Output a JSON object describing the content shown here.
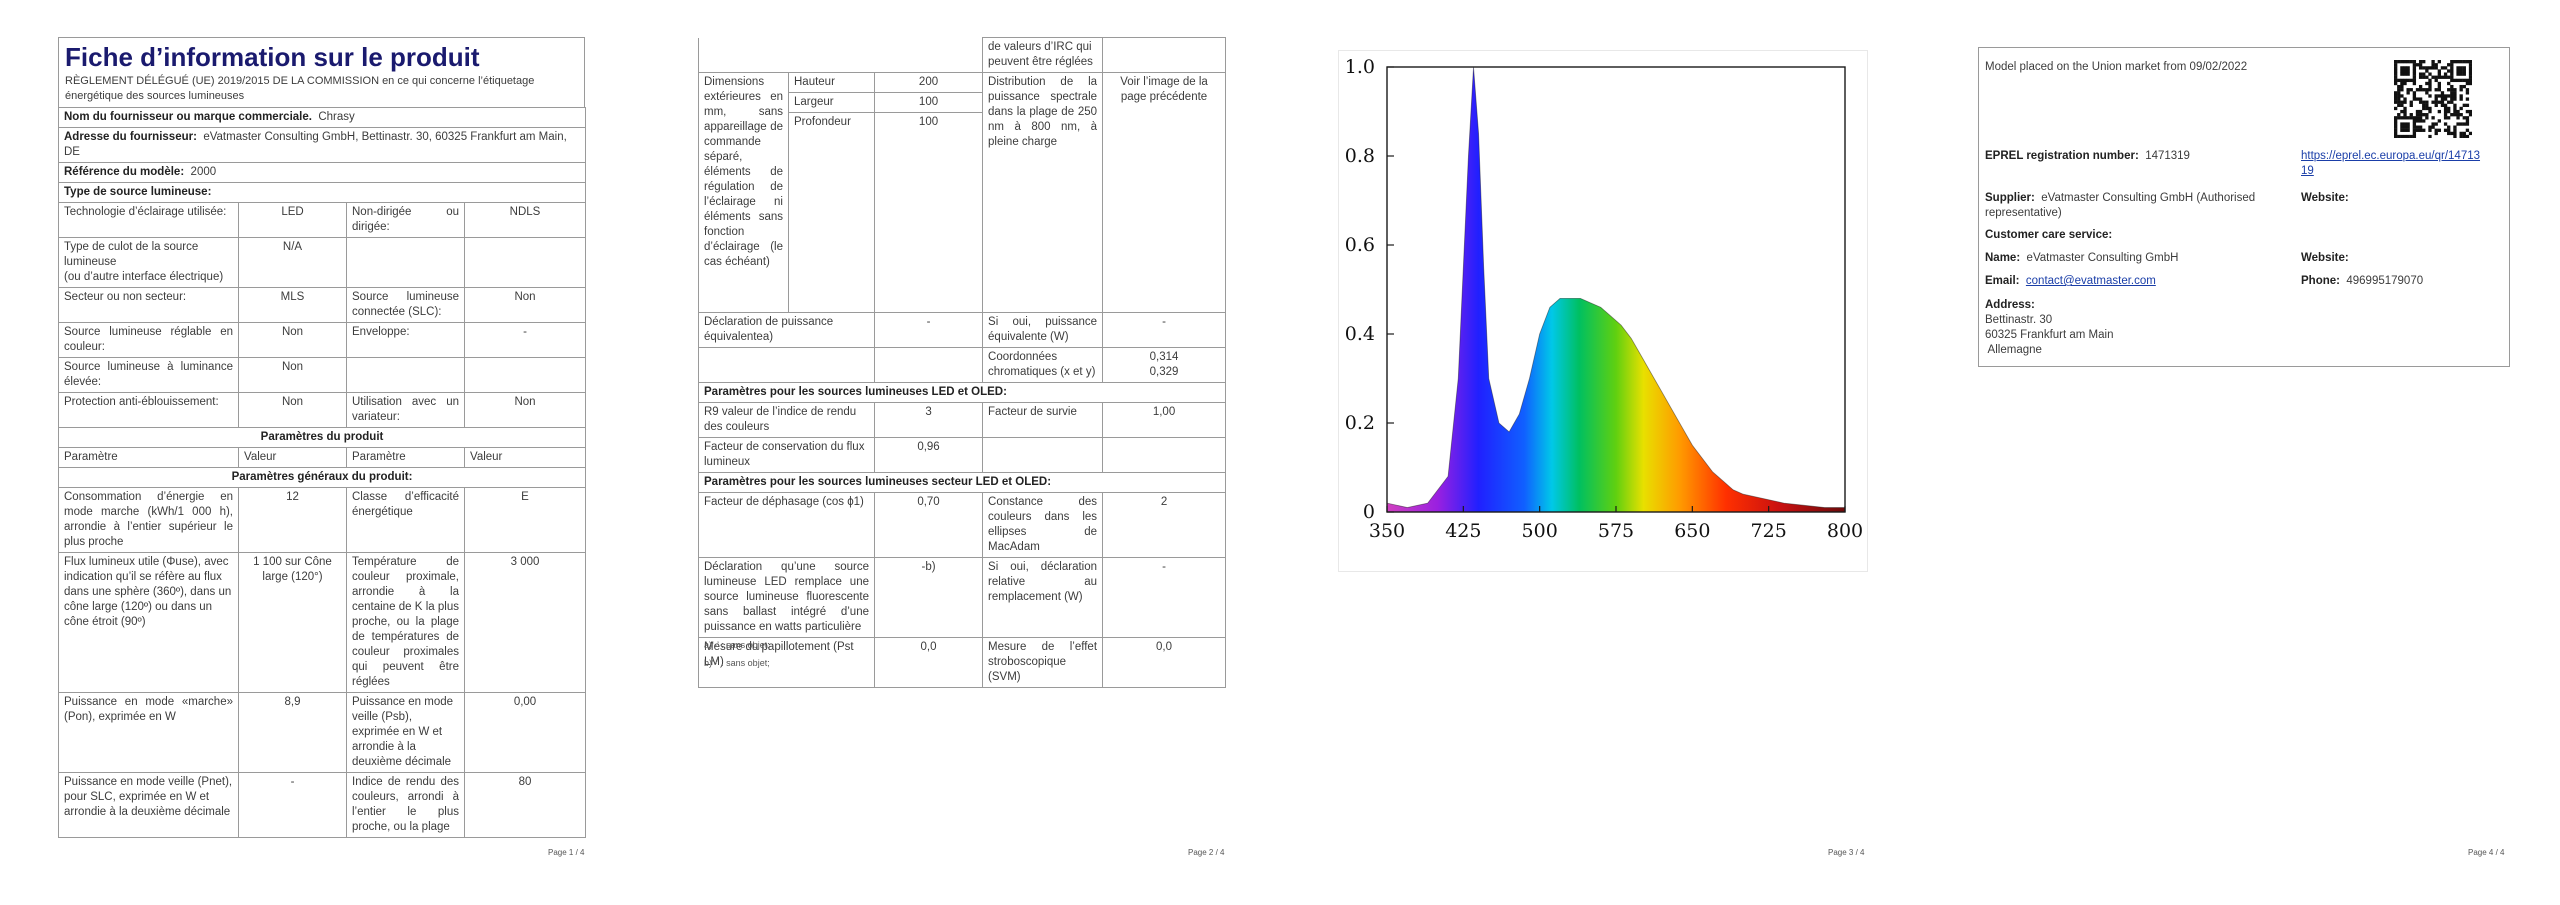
{
  "page1": {
    "title": "Fiche d’information sur le produit",
    "regulation": "RÈGLEMENT DÉLÉGUÉ (UE) 2019/2015 DE LA COMMISSION en ce qui concerne l’étiquetage énergétique des sources lumineuses",
    "supplier_name_label": "Nom du fournisseur ou marque commerciale.",
    "supplier_name_value": "Chrasy",
    "supplier_address_label": "Adresse du fournisseur:",
    "supplier_address_value": "eVatmaster Consulting GmbH, Bettinastr. 30, 60325 Frankfurt am Main, DE",
    "model_ref_label": "Référence du modèle:",
    "model_ref_value": "2000",
    "light_source_type": "Type de source lumineuse:",
    "rows": [
      [
        "Technologie d’éclairage utilisée:",
        "LED",
        "Non-dirigée ou dirigée:",
        "NDLS"
      ],
      [
        "Type de culot de la source lumineuse\n(ou d’autre interface électrique)",
        "N/A",
        "",
        ""
      ],
      [
        "Secteur ou non secteur:",
        "MLS",
        "Source lumineuse connectée (SLC):",
        "Non"
      ],
      [
        "Source lumineuse réglable en couleur:",
        "Non",
        "Enveloppe:",
        "-"
      ],
      [
        "Source lumineuse à luminance élevée:",
        "Non",
        "",
        ""
      ],
      [
        "Protection anti-éblouissement:",
        "Non",
        "Utilisation avec un variateur:",
        "Non"
      ]
    ],
    "product_params": "Paramètres du produit",
    "col_headers": [
      "Paramètre",
      "Valeur",
      "Paramètre",
      "Valeur"
    ],
    "general_params": "Paramètres généraux du produit:",
    "rows2": [
      [
        "Consommation d’énergie en mode marche (kWh/1 000 h), arrondie à l’entier supérieur le plus proche",
        "12",
        "Classe d’efficacité énergétique",
        "E"
      ],
      [
        "Flux lumineux utile (Φuse), avec indication qu’il se réfère au flux dans une sphère (360º), dans un cône large (120º) ou dans un cône étroit (90º)",
        "1 100 sur Cône large (120°)",
        "Température de couleur proximale, arrondie à la centaine de K la plus proche, ou la plage de températures de couleur proximales qui peuvent être réglées",
        "3 000"
      ],
      [
        "Puissance en mode «marche» (Pon), exprimée en W",
        "8,9",
        "Puissance en mode veille (Psb), exprimée en W et arrondie à la deuxième décimale",
        "0,00"
      ],
      [
        "Puissance en mode veille (Pnet), pour SLC, exprimée en W et arrondie à la deuxième décimale",
        "-",
        "Indice de rendu des couleurs, arrondi à l’entier le plus proche, ou la plage",
        "80"
      ]
    ],
    "page_no": "Page 1 / 4"
  },
  "page2": {
    "top_cont": "de valeurs d’IRC qui peuvent être réglées",
    "dims_label": "Dimensions extérieures en mm, sans appareillage de commande séparé, éléments de régulation de l’éclairage ni éléments sans fonction d’éclairage (le cas échéant)",
    "height_label": "Hauteur",
    "height_value": "200",
    "width_label": "Largeur",
    "width_value": "100",
    "depth_label": "Profondeur",
    "depth_value": "100",
    "spd_label": "Distribution de la puissance spectrale dans la plage de 250 nm à 800 nm, à pleine charge",
    "spd_value": "Voir l’image de la page précédente",
    "equiv_label": "Déclaration de puissance équivalentea)",
    "equiv_value": "-",
    "equiv_q_label": "Si oui, puissance équivalente (W)",
    "equiv_q_value": "-",
    "chroma_label": "Coordonnées chromatiques (x et y)",
    "chroma_x": "0,314",
    "chroma_y": "0,329",
    "led_oled_title": "Paramètres pour les sources lumineuses LED et OLED:",
    "r9_label": "R9 valeur de l’indice de rendu des couleurs",
    "r9_value": "3",
    "survival_label": "Facteur de survie",
    "survival_value": "1,00",
    "lumen_maint_label": "Facteur de conservation du flux lumineux",
    "lumen_maint_value": "0,96",
    "mains_title": "Paramètres pour les sources lumineuses secteur LED et OLED:",
    "pf_label": "Facteur de déphasage (cos ϕ1)",
    "pf_value": "0,70",
    "macadam_label": "Constance des couleurs dans les ellipses de MacAdam",
    "macadam_value": "2",
    "cfl_label": "Déclaration qu’une source lumineuse LED remplace une source lumineuse fluorescente sans ballast intégré d’une puissance en watts particulière",
    "cfl_value": "-b)",
    "cfl_q_label": "Si oui, déclaration relative au remplacement (W)",
    "cfl_q_value": "-",
    "flicker_label": "Mesure du papillotement (Pst LM)",
    "flicker_value": "0,0",
    "strobo_label": "Mesure de l’effet stroboscopique (SVM)",
    "strobo_value": "0,0",
    "fn_a": "a)‘-’ : sans objet;",
    "fn_b": "b)‘-’ : sans objet;",
    "page_no": "Page 2 / 4"
  },
  "page3": {
    "y_ticks": [
      "0",
      "0.2",
      "0.4",
      "0.6",
      "0.8",
      "1.0"
    ],
    "x_ticks": [
      "350",
      "425",
      "500",
      "575",
      "650",
      "725",
      "800"
    ],
    "page_no": "Page 3 / 4"
  },
  "chart_data": {
    "type": "area",
    "xlim": [
      350,
      800
    ],
    "ylim": [
      0,
      1.0
    ],
    "x": [
      350,
      370,
      390,
      410,
      420,
      430,
      435,
      440,
      445,
      450,
      460,
      470,
      480,
      490,
      500,
      510,
      520,
      530,
      540,
      550,
      560,
      570,
      580,
      590,
      600,
      610,
      620,
      630,
      640,
      650,
      660,
      670,
      680,
      690,
      700,
      720,
      740,
      760,
      780,
      800
    ],
    "y": [
      0.02,
      0.01,
      0.02,
      0.08,
      0.3,
      0.8,
      1.0,
      0.85,
      0.55,
      0.3,
      0.2,
      0.18,
      0.22,
      0.3,
      0.4,
      0.46,
      0.48,
      0.48,
      0.48,
      0.47,
      0.46,
      0.44,
      0.42,
      0.39,
      0.35,
      0.31,
      0.27,
      0.23,
      0.19,
      0.15,
      0.12,
      0.09,
      0.07,
      0.05,
      0.04,
      0.03,
      0.02,
      0.015,
      0.01,
      0.01
    ],
    "title": "",
    "xlabel": "",
    "ylabel": "",
    "grid": false
  },
  "page4": {
    "placed": "Model placed on the Union market from 09/02/2022",
    "eprel_label": "EPREL registration number:",
    "eprel_value": "1471319",
    "eprel_link": "https://eprel.ec.europa.eu/qr/1471319",
    "supplier_label": "Supplier:",
    "supplier_value": "eVatmaster Consulting GmbH (Authorised representative)",
    "website_label": "Website:",
    "ccs_label": "Customer care service:",
    "name_label": "Name:",
    "name_value": "eVatmaster Consulting GmbH",
    "website2_label": "Website:",
    "email_label": "Email:",
    "email_value": "contact@evatmaster.com",
    "phone_label": "Phone:",
    "phone_value": "496995179070",
    "address_label": "Address:",
    "address_lines": [
      "Bettinastr. 30",
      "60325 Frankfurt am Main",
      " Allemagne"
    ],
    "page_no": "Page 4 / 4"
  }
}
